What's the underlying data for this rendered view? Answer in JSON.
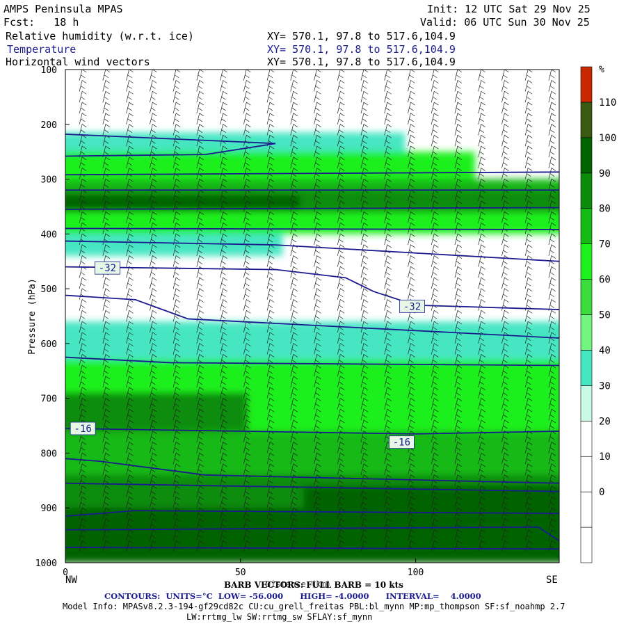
{
  "header": {
    "model": "AMPS Peninsula MPAS",
    "init": "Init: 12 UTC Sat 29 Nov 25",
    "fcst": "Fcst:   18 h",
    "valid": "Valid: 06 UTC Sun 30 Nov 25",
    "fields": [
      {
        "name": "Relative humidity (w.r.t. ice)",
        "xy": "XY= 570.1, 97.8 to 517.6,104.9"
      },
      {
        "name": "Temperature",
        "xy": "XY= 570.1, 97.8 to 517.6,104.9"
      },
      {
        "name": "Horizontal wind vectors",
        "xy": "XY= 570.1, 97.8 to 517.6,104.9"
      }
    ]
  },
  "footer": {
    "barb": "BARB VECTORS: FULL BARB = 10 kts",
    "xlabel_overlap": "Distance (km)",
    "contours": "CONTOURS:  UNITS=°C  LOW= -56.000      HIGH= -4.0000      INTERVAL=    4.0000",
    "model_info": "Model Info: MPASv8.2.3-194-gf29cd82c CU:cu_grell_freitas PBL:bl_mynn MP:mp_thompson SF:sf_noahmp 2.7",
    "model_info2": "LW:rrtmg_lw SW:rrtmg_sw SFLAY:sf_mynn"
  },
  "chart_data": {
    "type": "heatmap",
    "xlabel": "Distance (km)",
    "ylabel": "Pressure (hPa)",
    "xlim": [
      0,
      141
    ],
    "ylim": [
      1000,
      100
    ],
    "x_ticks": [
      0,
      50,
      100
    ],
    "y_ticks": [
      100,
      200,
      300,
      400,
      500,
      600,
      700,
      800,
      900,
      1000
    ],
    "x_end_labels": {
      "left": "NW",
      "right": "SE"
    },
    "colorbar": {
      "unit": "%",
      "levels": [
        -10,
        0,
        10,
        20,
        30,
        40,
        50,
        60,
        70,
        80,
        90,
        100,
        110,
        120
      ],
      "tick_labels": [
        0,
        10,
        20,
        30,
        40,
        50,
        60,
        70,
        80,
        90,
        100,
        110
      ],
      "colors": [
        "#ffffff",
        "#ffffff",
        "#ffffff",
        "#ffffff",
        "#c8fae6",
        "#46e6c3",
        "#73f582",
        "#3cdc3c",
        "#1ef01e",
        "#14b914",
        "#0a8c0a",
        "#006400",
        "#3a5a14",
        "#c82800"
      ]
    },
    "rh_layers": [
      {
        "p_top": 215,
        "p_bot": 255,
        "x_end": 95,
        "rh": 45
      },
      {
        "p_top": 250,
        "p_bot": 300,
        "x_end": 115,
        "rh": 70
      },
      {
        "p_top": 300,
        "p_bot": 330,
        "x_end": 141,
        "rh": 80
      },
      {
        "p_top": 320,
        "p_bot": 360,
        "x_end": 141,
        "rh": 90
      },
      {
        "p_top": 330,
        "p_bot": 355,
        "x_end": 65,
        "rh": 105
      },
      {
        "p_top": 360,
        "p_bot": 400,
        "x_end": 141,
        "rh": 75
      },
      {
        "p_top": 400,
        "p_bot": 440,
        "x_end": 60,
        "rh": 45
      },
      {
        "p_top": 560,
        "p_bot": 640,
        "x_end": 141,
        "rh": 45
      },
      {
        "p_top": 630,
        "p_bot": 1000,
        "x_end": 141,
        "rh": 70
      },
      {
        "p_top": 690,
        "p_bot": 760,
        "x_end": 50,
        "rh": 90
      },
      {
        "p_top": 760,
        "p_bot": 840,
        "x_end": 141,
        "rh": 80
      },
      {
        "p_top": 840,
        "p_bot": 1000,
        "x_end": 141,
        "rh": 90
      },
      {
        "p_top": 860,
        "p_bot": 960,
        "x_start": 70,
        "x_end": 141,
        "rh": 105
      },
      {
        "p_top": 900,
        "p_bot": 1000,
        "x_end": 141,
        "rh": 100
      }
    ],
    "isotherms": [
      {
        "points": [
          [
            0,
            218
          ],
          [
            50,
            232
          ],
          [
            60,
            235
          ],
          [
            40,
            255
          ],
          [
            0,
            258
          ]
        ]
      },
      {
        "points": [
          [
            0,
            292
          ],
          [
            141,
            287
          ]
        ]
      },
      {
        "points": [
          [
            0,
            320
          ],
          [
            141,
            320
          ]
        ]
      },
      {
        "points": [
          [
            0,
            355
          ],
          [
            141,
            352
          ]
        ]
      },
      {
        "points": [
          [
            0,
            390
          ],
          [
            141,
            392
          ]
        ]
      },
      {
        "points": [
          [
            0,
            413
          ],
          [
            60,
            420
          ],
          [
            141,
            450
          ]
        ]
      },
      {
        "points": [
          [
            0,
            460
          ],
          [
            60,
            465
          ],
          [
            80,
            480
          ],
          [
            88,
            505
          ],
          [
            100,
            530
          ],
          [
            141,
            538
          ]
        ],
        "label": "-32",
        "label_at": [
          [
            12,
            462
          ],
          [
            99,
            532
          ]
        ]
      },
      {
        "points": [
          [
            0,
            512
          ],
          [
            20,
            520
          ],
          [
            35,
            555
          ],
          [
            141,
            590
          ]
        ]
      },
      {
        "points": [
          [
            0,
            625
          ],
          [
            30,
            635
          ],
          [
            141,
            640
          ]
        ]
      },
      {
        "points": [
          [
            0,
            755
          ],
          [
            100,
            765
          ],
          [
            141,
            760
          ]
        ],
        "label": "-16",
        "label_at": [
          [
            5,
            755
          ],
          [
            96,
            780
          ]
        ]
      },
      {
        "points": [
          [
            0,
            810
          ],
          [
            10,
            815
          ],
          [
            40,
            840
          ],
          [
            141,
            855
          ]
        ]
      },
      {
        "points": [
          [
            0,
            855
          ],
          [
            141,
            870
          ]
        ]
      },
      {
        "points": [
          [
            0,
            915
          ],
          [
            10,
            910
          ],
          [
            20,
            905
          ],
          [
            141,
            910
          ]
        ]
      },
      {
        "points": [
          [
            0,
            940
          ],
          [
            135,
            935
          ],
          [
            141,
            960
          ]
        ]
      },
      {
        "points": [
          [
            0,
            972
          ],
          [
            141,
            975
          ]
        ]
      }
    ]
  }
}
